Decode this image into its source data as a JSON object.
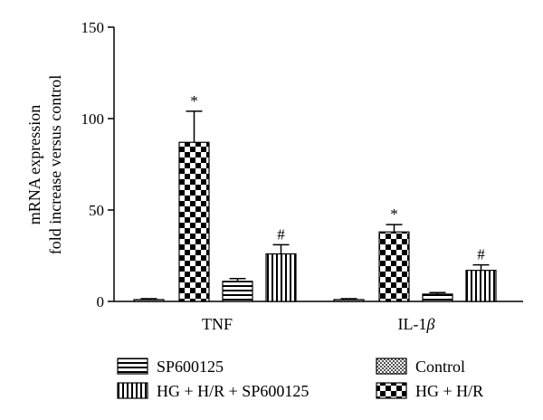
{
  "chart_data": {
    "type": "bar",
    "ylabel": [
      "mRNA expression",
      "fold increase versus control"
    ],
    "ylim": [
      0,
      150
    ],
    "yticks": [
      0,
      50,
      100,
      150
    ],
    "categories": [
      "TNF",
      "IL-1β"
    ],
    "category_names": [
      "TNF",
      "IL-1",
      "β"
    ],
    "series": [
      {
        "name": "Control",
        "values": [
          1.0,
          1.0
        ],
        "errors": [
          0.5,
          0.5
        ],
        "pattern": "control",
        "annotations": [
          "",
          ""
        ]
      },
      {
        "name": "HG + H/R",
        "values": [
          87,
          38
        ],
        "errors": [
          17,
          4
        ],
        "pattern": "checker",
        "annotations": [
          "*",
          "*"
        ]
      },
      {
        "name": "SP600125",
        "values": [
          11,
          4
        ],
        "errors": [
          1.5,
          0.8
        ],
        "pattern": "hstripe",
        "annotations": [
          "",
          ""
        ]
      },
      {
        "name": "HG + H/R + SP600125",
        "values": [
          26,
          17
        ],
        "errors": [
          5,
          3
        ],
        "pattern": "vstripe",
        "annotations": [
          "#",
          "#"
        ]
      }
    ],
    "legend_order": [
      2,
      0,
      3,
      1
    ],
    "grid": false,
    "legend_position": "bottom"
  }
}
